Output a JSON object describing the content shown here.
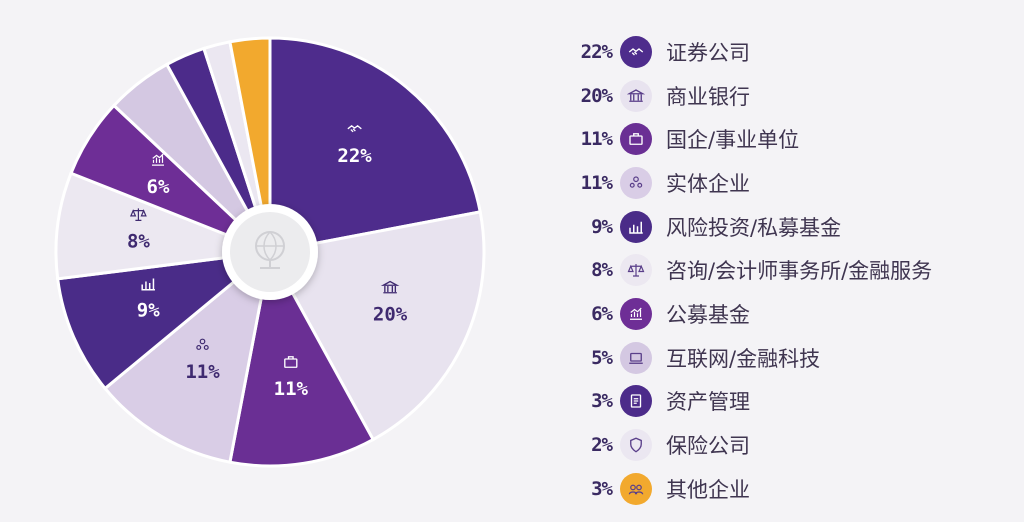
{
  "chart_data": {
    "type": "pie",
    "style": "donut",
    "start": "top",
    "direction": "clockwise",
    "legend_position": "right",
    "slices": [
      {
        "label": "证券公司",
        "value": 22,
        "display": "22%",
        "color": "#4e2c8c",
        "icon": "handshake-icon"
      },
      {
        "label": "商业银行",
        "value": 20,
        "display": "20%",
        "color": "#e8e3ef",
        "icon": "bank-icon"
      },
      {
        "label": "国企/事业单位",
        "value": 11,
        "display": "11%",
        "color": "#6a2f94",
        "icon": "briefcase-icon"
      },
      {
        "label": "实体企业",
        "value": 11,
        "display": "11%",
        "color": "#d9cde6",
        "icon": "people-icon"
      },
      {
        "label": "风险投资/私募基金",
        "value": 9,
        "display": "9%",
        "color": "#4a2c88",
        "icon": "bar-chart-icon"
      },
      {
        "label": "咨询/会计师事务所/金融服务",
        "value": 8,
        "display": "8%",
        "color": "#ece8f1",
        "icon": "scales-icon"
      },
      {
        "label": "公募基金",
        "value": 6,
        "display": "6%",
        "color": "#6e2e96",
        "icon": "rising-chart-icon"
      },
      {
        "label": "互联网/金融科技",
        "value": 5,
        "display": "5%",
        "color": "#d4c8e2",
        "icon": "laptop-icon"
      },
      {
        "label": "资产管理",
        "value": 3,
        "display": "3%",
        "color": "#4c2b8a",
        "icon": "document-icon"
      },
      {
        "label": "保险公司",
        "value": 2,
        "display": "2%",
        "color": "#ebe7f1",
        "icon": "shield-icon"
      },
      {
        "label": "其他企业",
        "value": 3,
        "display": "3%",
        "color": "#f2a92e",
        "icon": "group-icon"
      }
    ]
  }
}
